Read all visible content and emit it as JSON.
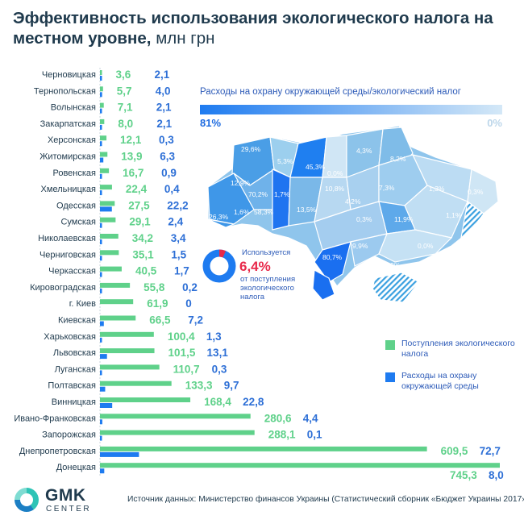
{
  "title": {
    "main": "Эффективность использования экологического налога на местном уровне,",
    "unit": "млн грн"
  },
  "map": {
    "legend_title": "Расходы на охрану окружающей среды/экологический налог",
    "scale_max": "81%",
    "scale_min": "0%",
    "region_labels": [
      "29,6%",
      "5,3%",
      "45,3%",
      "0,0%",
      "4,3%",
      "8,2%",
      "12,9%",
      "70,2%",
      "1,7%",
      "10,8%",
      "7,3%",
      "1,3%",
      "0,3%",
      "26,3%",
      "1,6%",
      "58,3%",
      "13,5%",
      "4,2%",
      "0,3%",
      "11,9%",
      "1,1%",
      "9,9%",
      "0,0%",
      "80,7%",
      "2,9%"
    ],
    "donut_caption_1": "Используется",
    "donut_value": "6,4%",
    "donut_caption_2": "от поступления экологического налога",
    "donut_fraction": 0.064
  },
  "legend": {
    "income": "Поступления экологического налога",
    "spending": "Расходы на охрану окружающей среды"
  },
  "colors": {
    "income": "#5fd18a",
    "spending": "#1e7bf0",
    "title": "#1f3a4d",
    "highlight": "#e8294a"
  },
  "chart_data": {
    "type": "bar",
    "orientation": "horizontal",
    "categories": [
      "Черновицкая",
      "Тернопольская",
      "Волынская",
      "Закарпатская",
      "Херсонская",
      "Житомирская",
      "Ровенская",
      "Хмельницкая",
      "Одесская",
      "Сумская",
      "Николаевская",
      "Черниговская",
      "Черкасская",
      "Кировоградская",
      "г. Киев",
      "Киевская",
      "Харьковская",
      "Львовская",
      "Луганская",
      "Полтавская",
      "Винницкая",
      "Ивано-Франковская",
      "Запорожская",
      "Днепропетровская",
      "Донецкая"
    ],
    "series": [
      {
        "name": "Поступления экологического налога",
        "values": [
          3.6,
          5.7,
          7.1,
          8.0,
          12.1,
          13.9,
          16.7,
          22.4,
          27.5,
          29.1,
          34.2,
          35.1,
          40.5,
          55.8,
          61.9,
          66.5,
          100.4,
          101.5,
          110.7,
          133.3,
          168.4,
          280.6,
          288.1,
          609.5,
          745.3
        ]
      },
      {
        "name": "Расходы на охрану окружающей среды",
        "values": [
          2.1,
          4.0,
          2.1,
          2.1,
          0.3,
          6.3,
          0.9,
          0.4,
          22.2,
          2.4,
          3.4,
          1.5,
          1.7,
          0.2,
          0,
          7.2,
          1.3,
          13.1,
          0.3,
          9.7,
          22.8,
          4.4,
          0.1,
          72.7,
          8.0
        ]
      }
    ],
    "value_labels_income": [
      "3,6",
      "5,7",
      "7,1",
      "8,0",
      "12,1",
      "13,9",
      "16,7",
      "22,4",
      "27,5",
      "29,1",
      "34,2",
      "35,1",
      "40,5",
      "55,8",
      "61,9",
      "66,5",
      "100,4",
      "101,5",
      "110,7",
      "133,3",
      "168,4",
      "280,6",
      "288,1",
      "609,5",
      "745,3"
    ],
    "value_labels_spending": [
      "2,1",
      "4,0",
      "2,1",
      "2,1",
      "0,3",
      "6,3",
      "0,9",
      "0,4",
      "22,2",
      "2,4",
      "3,4",
      "1,5",
      "1,7",
      "0,2",
      "0",
      "7,2",
      "1,3",
      "13,1",
      "0,3",
      "9,7",
      "22,8",
      "4,4",
      "0,1",
      "72,7",
      "8,0"
    ]
  },
  "source": "Источник данных: Министерство финансов Украины (Статистический сборник «Бюджет Украины 2017»)",
  "logo": {
    "main": "GMK",
    "sub": "CENTER"
  }
}
